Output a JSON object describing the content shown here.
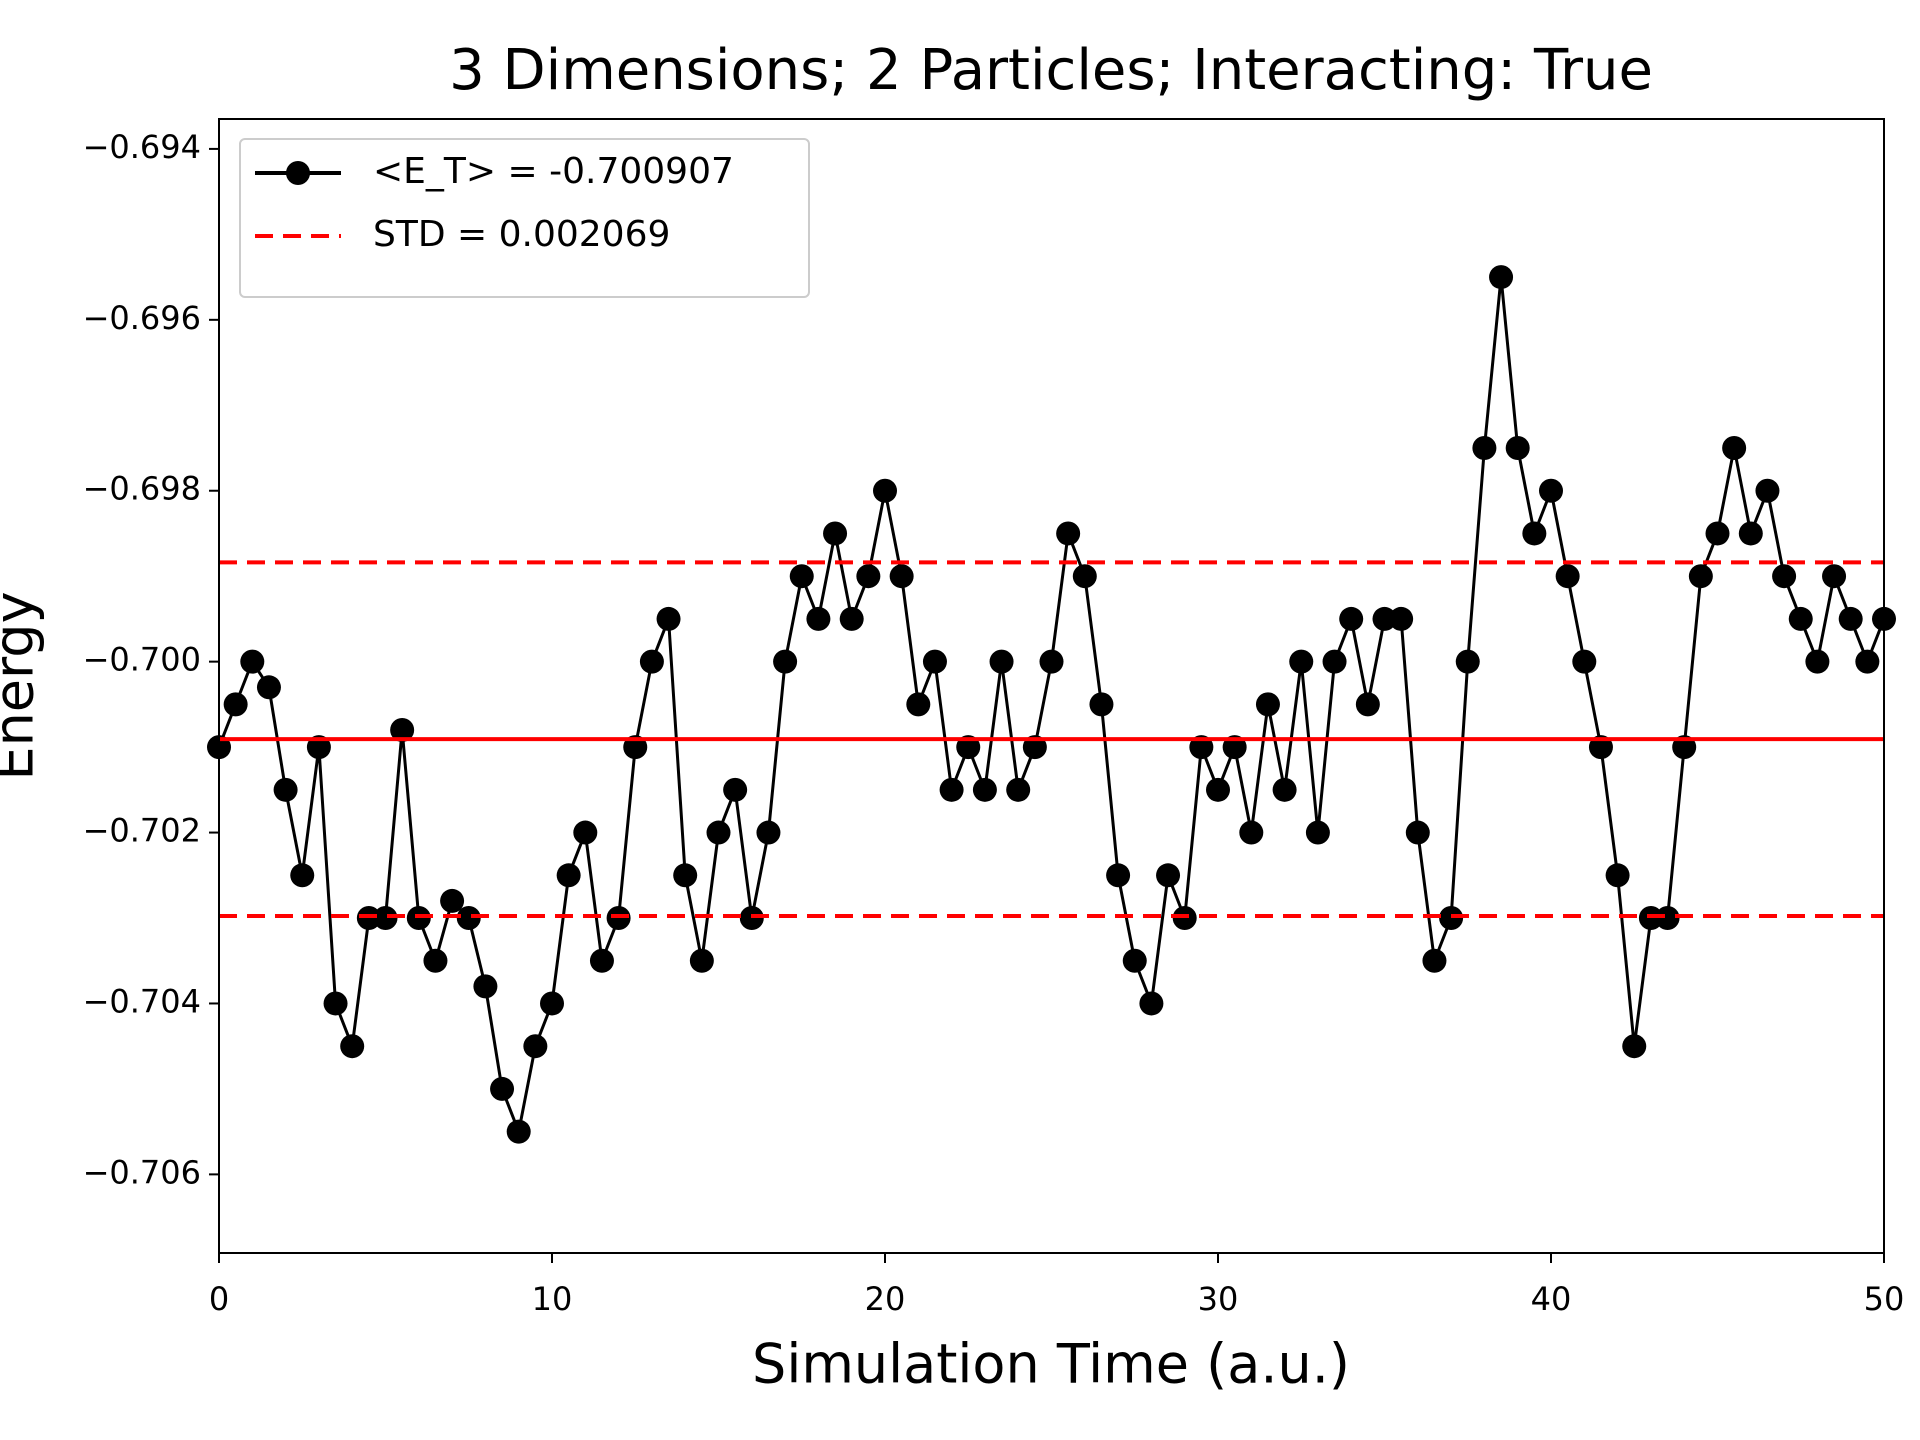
{
  "chart_data": {
    "type": "line",
    "title": "3 Dimensions; 2 Particles; Interacting: True",
    "x_label": "Simulation Time (a.u.)",
    "y_label": "Energy",
    "x": [
      0,
      0.5,
      1,
      1.5,
      2,
      2.5,
      3,
      3.5,
      4,
      4.5,
      5,
      5.5,
      6,
      6.5,
      7,
      7.5,
      8,
      8.5,
      9,
      9.5,
      10,
      10.5,
      11,
      11.5,
      12,
      12.5,
      13,
      13.5,
      14,
      14.5,
      15,
      15.5,
      16,
      16.5,
      17,
      17.5,
      18,
      18.5,
      19,
      19.5,
      20,
      20.5,
      21,
      21.5,
      22,
      22.5,
      23,
      23.5,
      24,
      24.5,
      25,
      25.5,
      26,
      26.5,
      27,
      27.5,
      28,
      28.5,
      29,
      29.5,
      30,
      30.5,
      31,
      31.5,
      32,
      32.5,
      33,
      33.5,
      34,
      34.5,
      35,
      35.5,
      36,
      36.5,
      37,
      37.5,
      38,
      38.5,
      39,
      39.5,
      40,
      40.5,
      41,
      41.5,
      42,
      42.5,
      43,
      43.5,
      44,
      44.5,
      45,
      45.5,
      46,
      46.5,
      47,
      47.5,
      48,
      48.5,
      49,
      49.5,
      50
    ],
    "series": [
      {
        "name": "<E_T> = -0.700907",
        "color": "#000000",
        "values": [
          -0.701,
          -0.7005,
          -0.7,
          -0.7003,
          -0.7015,
          -0.7025,
          -0.701,
          -0.704,
          -0.7045,
          -0.703,
          -0.703,
          -0.7008,
          -0.703,
          -0.7035,
          -0.7028,
          -0.703,
          -0.7038,
          -0.705,
          -0.7055,
          -0.7045,
          -0.704,
          -0.7025,
          -0.702,
          -0.7035,
          -0.703,
          -0.701,
          -0.7,
          -0.6995,
          -0.7025,
          -0.7035,
          -0.702,
          -0.7015,
          -0.703,
          -0.702,
          -0.7,
          -0.699,
          -0.6995,
          -0.6985,
          -0.6995,
          -0.699,
          -0.698,
          -0.699,
          -0.7005,
          -0.7,
          -0.7015,
          -0.701,
          -0.7015,
          -0.7,
          -0.7015,
          -0.701,
          -0.7,
          -0.6985,
          -0.699,
          -0.7005,
          -0.7025,
          -0.7035,
          -0.704,
          -0.7025,
          -0.703,
          -0.701,
          -0.7015,
          -0.701,
          -0.702,
          -0.7005,
          -0.7015,
          -0.7,
          -0.702,
          -0.7,
          -0.6995,
          -0.7005,
          -0.6995,
          -0.6995,
          -0.702,
          -0.7035,
          -0.703,
          -0.7,
          -0.6975,
          -0.6955,
          -0.6975,
          -0.6985,
          -0.698,
          -0.699,
          -0.7,
          -0.701,
          -0.7025,
          -0.7045,
          -0.703,
          -0.703,
          -0.701,
          -0.699,
          -0.6985,
          -0.6975,
          -0.6985,
          -0.698,
          -0.699,
          -0.6995,
          -0.7,
          -0.699,
          -0.6995,
          -0.7,
          -0.6995
        ]
      }
    ],
    "hlines": [
      {
        "name": "STD = 0.002069",
        "color": "#ff0000",
        "style": "dashed",
        "values": [
          -0.698838,
          -0.702976
        ]
      },
      {
        "color": "#ff0000",
        "style": "solid",
        "values": [
          -0.700907
        ]
      }
    ],
    "xlim": [
      0,
      50
    ],
    "xticks": [
      0,
      10,
      20,
      30,
      40,
      50
    ],
    "ylim": [
      -0.70692,
      -0.69365
    ],
    "yticks": [
      {
        "value": -0.694,
        "label": "−0.694"
      },
      {
        "value": -0.696,
        "label": "−0.696"
      },
      {
        "value": -0.698,
        "label": "−0.698"
      },
      {
        "value": -0.7,
        "label": "−0.700"
      },
      {
        "value": -0.702,
        "label": "−0.702"
      },
      {
        "value": -0.704,
        "label": "−0.704"
      },
      {
        "value": -0.706,
        "label": "−0.706"
      }
    ],
    "legend": "upper left"
  }
}
